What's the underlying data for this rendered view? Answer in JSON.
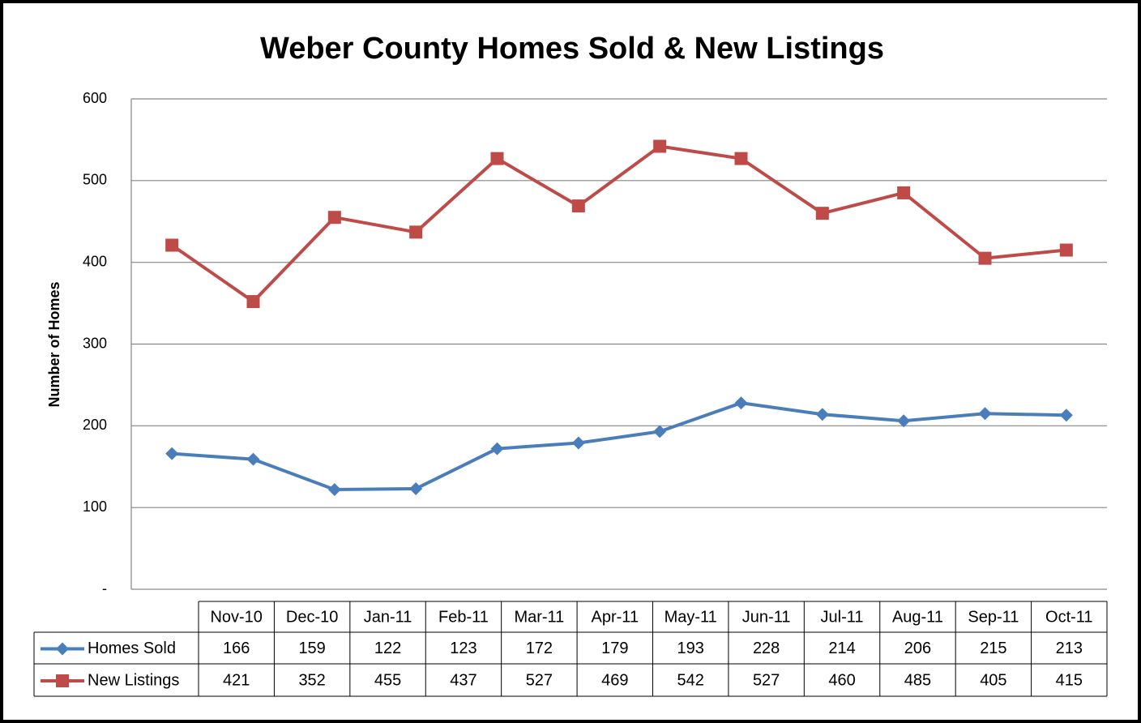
{
  "chart_data": {
    "type": "line",
    "title": "Weber County Homes Sold & New Listings",
    "y_label": "Number of Homes",
    "categories": [
      "Nov-10",
      "Dec-10",
      "Jan-11",
      "Feb-11",
      "Mar-11",
      "Apr-11",
      "May-11",
      "Jun-11",
      "Jul-11",
      "Aug-11",
      "Sep-11",
      "Oct-11"
    ],
    "series": [
      {
        "name": "Homes Sold",
        "color": "#4a7ebb",
        "marker": "diamond",
        "values": [
          166,
          159,
          122,
          123,
          172,
          179,
          193,
          228,
          214,
          206,
          215,
          213
        ]
      },
      {
        "name": "New Listings",
        "color": "#be4b48",
        "marker": "square",
        "values": [
          421,
          352,
          455,
          437,
          527,
          469,
          542,
          527,
          460,
          485,
          405,
          415
        ]
      }
    ],
    "ylim": [
      0,
      600
    ],
    "yticks": [
      {
        "value": 0,
        "label": "-"
      },
      100,
      200,
      300,
      400,
      500,
      600
    ],
    "grid": true
  }
}
